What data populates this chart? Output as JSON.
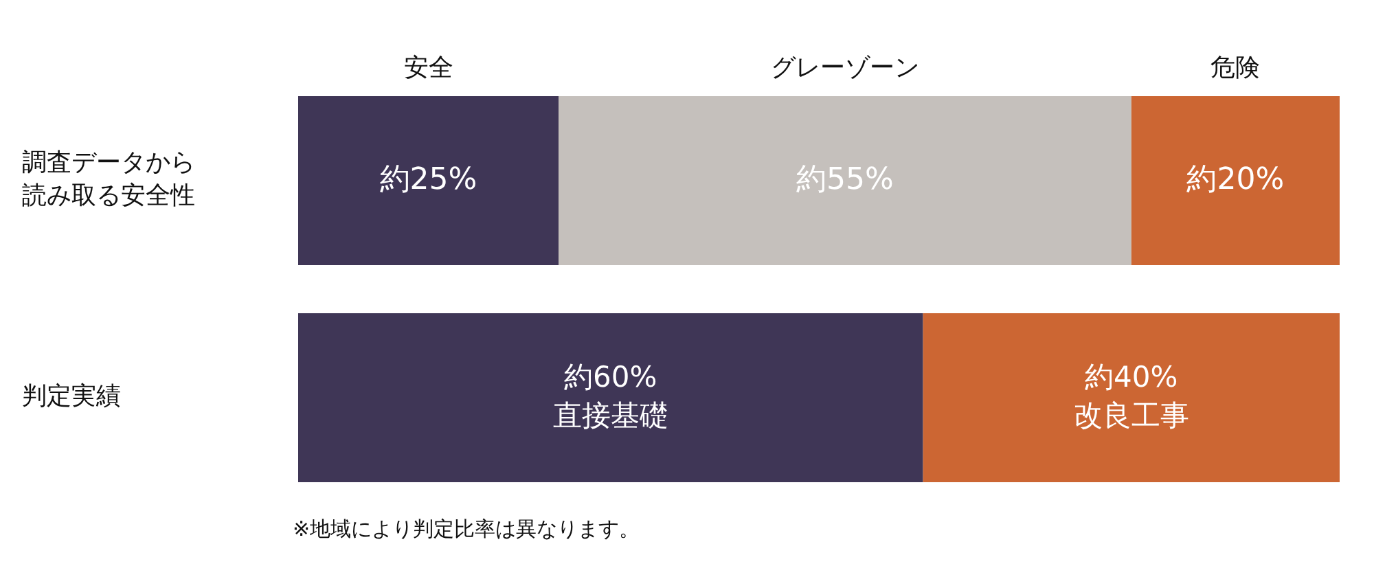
{
  "chart_data": {
    "type": "bar",
    "orientation": "horizontal",
    "stacked": true,
    "categories": [
      "調査データから読み取る安全性",
      "判定実績"
    ],
    "series": [
      {
        "name": "安全",
        "color": "#3f3656",
        "values": [
          25,
          60
        ],
        "value_labels": [
          "約25%",
          "約60% 直接基礎"
        ]
      },
      {
        "name": "グレーゾーン",
        "color": "#c5c0bc",
        "values": [
          55,
          null
        ],
        "value_labels": [
          "約55%",
          null
        ]
      },
      {
        "name": "危険",
        "color": "#cc6633",
        "values": [
          20,
          40
        ],
        "value_labels": [
          "約20%",
          "約40% 改良工事"
        ]
      }
    ],
    "annotations": [
      "※地域により判定比率は異なります。"
    ]
  }
}
